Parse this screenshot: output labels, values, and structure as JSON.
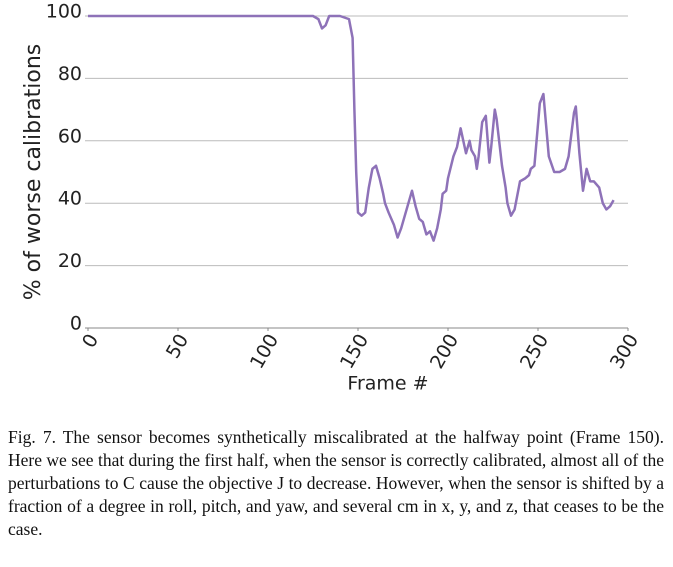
{
  "chart_data": {
    "type": "line",
    "xlabel": "Frame #",
    "ylabel": "% of worse calibrations",
    "xlim": [
      0,
      300
    ],
    "xticks": [
      0,
      50,
      100,
      150,
      200,
      250,
      300
    ],
    "ylim": [
      0,
      100
    ],
    "yticks": [
      0,
      20,
      40,
      60,
      80,
      100
    ],
    "grid": true,
    "series": [
      {
        "name": "worse calibrations",
        "color": "#8e72b8",
        "x": [
          0,
          118,
          125,
          128,
          130,
          132,
          134,
          140,
          145,
          147,
          148,
          149,
          150,
          152,
          154,
          156,
          158,
          160,
          162,
          164,
          165,
          167,
          170,
          172,
          174,
          176,
          178,
          180,
          182,
          184,
          186,
          188,
          190,
          192,
          194,
          196,
          197,
          199,
          200,
          203,
          205,
          207,
          210,
          212,
          213,
          215,
          216,
          217,
          219,
          221,
          223,
          224,
          226,
          227,
          230,
          232,
          233,
          235,
          237,
          240,
          243,
          245,
          246,
          248,
          251,
          253,
          256,
          259,
          262,
          265,
          267,
          270,
          271,
          273,
          275,
          277,
          279,
          281,
          284,
          286,
          288,
          290,
          292
        ],
        "values": [
          100,
          100,
          100,
          99,
          96,
          97,
          100,
          100,
          99,
          93,
          70,
          50,
          37,
          36,
          37,
          45,
          51,
          52,
          48,
          43,
          40,
          37,
          33,
          29,
          32,
          36,
          40,
          44,
          39,
          35,
          34,
          30,
          31,
          28,
          32,
          38,
          43,
          44,
          48,
          55,
          58,
          64,
          56,
          60,
          57,
          55,
          51,
          55,
          66,
          68,
          53,
          58,
          70,
          67,
          52,
          45,
          40,
          36,
          38,
          47,
          48,
          49,
          51,
          52,
          72,
          75,
          55,
          50,
          50,
          51,
          55,
          69,
          71,
          56,
          44,
          51,
          47,
          47,
          45,
          40,
          38,
          39,
          41
        ]
      }
    ]
  },
  "caption": "Fig. 7.   The sensor becomes synthetically miscalibrated at the halfway point (Frame 150). Here we see that during the first half, when the sensor is correctly calibrated, almost all of the perturbations to C cause the objective J to decrease. However, when the sensor is shifted by a fraction of a degree in roll, pitch, and yaw, and several cm in x, y, and z, that ceases to be the case."
}
